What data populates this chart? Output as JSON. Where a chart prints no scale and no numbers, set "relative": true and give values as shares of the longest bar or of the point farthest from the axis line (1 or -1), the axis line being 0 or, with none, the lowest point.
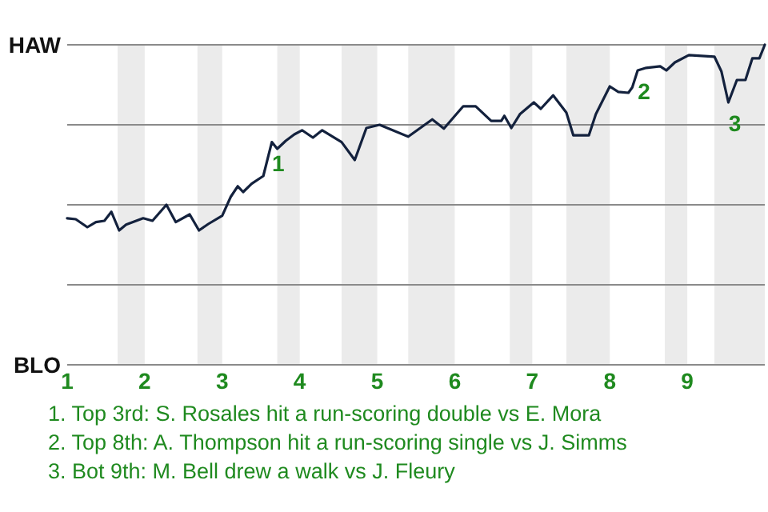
{
  "chart_data": {
    "type": "line",
    "relative": true,
    "xlim": [
      1,
      10
    ],
    "xticks": [
      1,
      2,
      3,
      4,
      5,
      6,
      7,
      8,
      9
    ],
    "marker": "none",
    "line_style": "solid",
    "grid": "y",
    "bands": [
      {
        "axis": "x",
        "from": 1.65,
        "to": 2,
        "color": "#ebebeb"
      },
      {
        "axis": "x",
        "from": 2.68,
        "to": 3,
        "color": "#ebebeb"
      },
      {
        "axis": "x",
        "from": 3.71,
        "to": 4,
        "color": "#ebebeb"
      },
      {
        "axis": "x",
        "from": 4.54,
        "to": 5,
        "color": "#ebebeb"
      },
      {
        "axis": "x",
        "from": 5.4,
        "to": 6,
        "color": "#ebebeb"
      },
      {
        "axis": "x",
        "from": 6.71,
        "to": 7,
        "color": "#ebebeb"
      },
      {
        "axis": "x",
        "from": 7.44,
        "to": 8,
        "color": "#ebebeb"
      },
      {
        "axis": "x",
        "from": 8.71,
        "to": 9,
        "color": "#ebebeb"
      },
      {
        "axis": "x",
        "from": 9.35,
        "to": 10,
        "color": "#ebebeb"
      }
    ],
    "series": [
      {
        "color": "#13213d",
        "x": [
          1.0,
          1.11,
          1.26,
          1.37,
          1.48,
          1.57,
          1.67,
          1.76,
          1.98,
          2.1,
          2.28,
          2.4,
          2.58,
          2.7,
          2.82,
          3.0,
          3.11,
          3.2,
          3.27,
          3.38,
          3.53,
          3.64,
          3.71,
          3.82,
          3.93,
          4.03,
          4.17,
          4.29,
          4.54,
          4.71,
          4.86,
          5.03,
          5.4,
          5.71,
          5.86,
          6.02,
          6.11,
          6.27,
          6.47,
          6.6,
          6.64,
          6.73,
          6.84,
          7.02,
          7.11,
          7.27,
          7.44,
          7.53,
          7.73,
          7.82,
          8.0,
          8.11,
          8.24,
          8.29,
          8.36,
          8.47,
          8.65,
          8.73,
          8.84,
          9.02,
          9.35,
          9.44,
          9.53,
          9.64,
          9.75,
          9.84,
          9.93,
          10.0
        ],
        "values": [
          0.458,
          0.455,
          0.43,
          0.446,
          0.45,
          0.478,
          0.42,
          0.438,
          0.458,
          0.45,
          0.5,
          0.446,
          0.47,
          0.42,
          0.44,
          0.466,
          0.525,
          0.558,
          0.54,
          0.566,
          0.59,
          0.696,
          0.675,
          0.7,
          0.72,
          0.733,
          0.71,
          0.733,
          0.696,
          0.64,
          0.74,
          0.75,
          0.713,
          0.767,
          0.738,
          0.783,
          0.808,
          0.808,
          0.762,
          0.762,
          0.778,
          0.74,
          0.783,
          0.82,
          0.8,
          0.842,
          0.788,
          0.717,
          0.717,
          0.783,
          0.87,
          0.853,
          0.85,
          0.867,
          0.92,
          0.928,
          0.933,
          0.92,
          0.945,
          0.968,
          0.963,
          0.917,
          0.82,
          0.89,
          0.89,
          0.958,
          0.958,
          1.0
        ]
      }
    ],
    "annotations": [
      {
        "text": "HAW"
      },
      {
        "text": "BLO"
      },
      {
        "text": "1",
        "x": 3.64,
        "y": 0.696
      },
      {
        "text": "2",
        "x": 8.36,
        "y": 0.92
      },
      {
        "text": "3",
        "x": 9.53,
        "y": 0.82
      },
      "1. Top 3rd: S. Rosales hit a run-scoring double vs E. Mora",
      "2. Top 8th: A. Thompson hit a run-scoring single vs J. Simms",
      "3. Bot 9th: M. Bell drew a walk vs J. Fleury"
    ]
  }
}
